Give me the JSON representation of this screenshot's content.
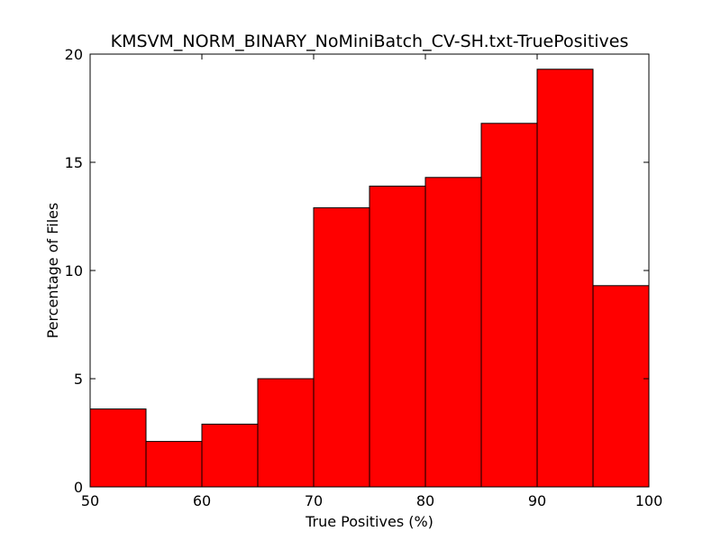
{
  "chart_data": {
    "type": "bar",
    "title": "KMSVM_NORM_BINARY_NoMiniBatch_CV-SH.txt-TruePositives",
    "xlabel": "True Positives (%)",
    "ylabel": "Percentage of Files",
    "xlim": [
      50,
      100
    ],
    "ylim": [
      0,
      20
    ],
    "xticks": [
      "50",
      "60",
      "70",
      "80",
      "90",
      "100"
    ],
    "yticks": [
      "0",
      "5",
      "10",
      "15",
      "20"
    ],
    "bin_edges": [
      50,
      55,
      60,
      65,
      70,
      75,
      80,
      85,
      90,
      95,
      100
    ],
    "values": [
      3.6,
      2.1,
      2.9,
      5.0,
      12.9,
      13.9,
      14.3,
      16.8,
      19.3,
      9.3
    ],
    "bar_color": "#ff0000",
    "edge_color": "#000000",
    "grid": false,
    "legend": "none"
  }
}
